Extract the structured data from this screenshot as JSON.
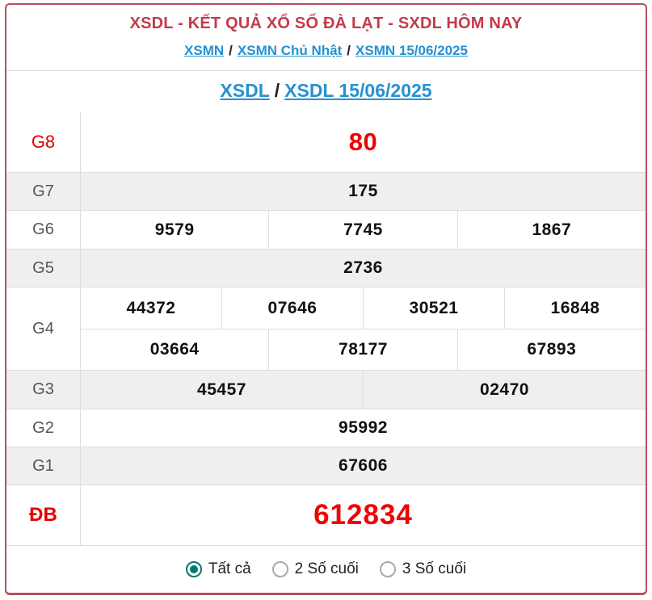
{
  "header": {
    "title": "XSDL - KẾT QUẢ XỔ SỐ ĐÀ LẠT - SXDL HÔM NAY",
    "separator": "/",
    "breadcrumb": [
      {
        "label": "XSMN"
      },
      {
        "label": "XSMN Chủ Nhật"
      },
      {
        "label": "XSMN 15/06/2025"
      }
    ],
    "sub_breadcrumb": [
      {
        "label": "XSDL"
      },
      {
        "label": "XSDL 15/06/2025"
      }
    ]
  },
  "results": {
    "rows": [
      {
        "label": "G8",
        "groups": [
          [
            "80"
          ]
        ]
      },
      {
        "label": "G7",
        "groups": [
          [
            "175"
          ]
        ]
      },
      {
        "label": "G6",
        "groups": [
          [
            "9579",
            "7745",
            "1867"
          ]
        ]
      },
      {
        "label": "G5",
        "groups": [
          [
            "2736"
          ]
        ]
      },
      {
        "label": "G4",
        "groups": [
          [
            "44372",
            "07646",
            "30521",
            "16848"
          ],
          [
            "03664",
            "78177",
            "67893"
          ]
        ]
      },
      {
        "label": "G3",
        "groups": [
          [
            "45457",
            "02470"
          ]
        ]
      },
      {
        "label": "G2",
        "groups": [
          [
            "95992"
          ]
        ]
      },
      {
        "label": "G1",
        "groups": [
          [
            "67606"
          ]
        ]
      },
      {
        "label": "ĐB",
        "groups": [
          [
            "612834"
          ]
        ]
      }
    ]
  },
  "footer": {
    "options": [
      {
        "label": "Tất cả",
        "selected": true
      },
      {
        "label": "2 Số cuối",
        "selected": false
      },
      {
        "label": "3 Số cuối",
        "selected": false
      }
    ]
  },
  "colors": {
    "panel_border": "#b9505a",
    "title_red": "#c43a4b",
    "link_blue": "#2691d0",
    "value_red": "#f10000",
    "row_alt_gray": "#efefef",
    "grid_gray": "#dddddd",
    "radio_teal": "#00796f"
  }
}
